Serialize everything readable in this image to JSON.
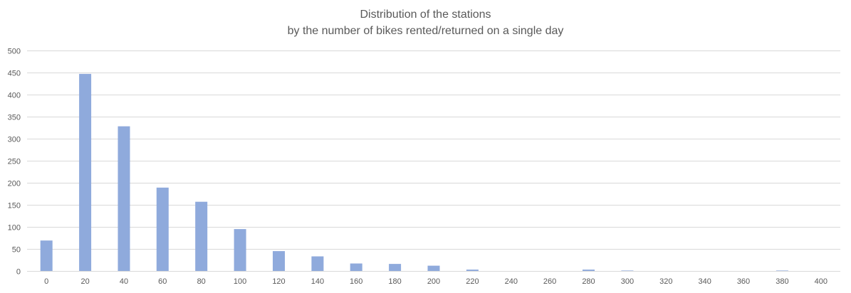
{
  "chart_data": {
    "type": "bar",
    "title": "Distribution of the stations",
    "subtitle": "by the number of bikes rented/returned on a single day",
    "xlabel": "",
    "ylabel": "",
    "categories": [
      "0",
      "20",
      "40",
      "60",
      "80",
      "100",
      "120",
      "140",
      "160",
      "180",
      "200",
      "220",
      "240",
      "260",
      "280",
      "300",
      "320",
      "340",
      "360",
      "380",
      "400"
    ],
    "values": [
      69,
      447,
      328,
      189,
      157,
      95,
      45,
      33,
      17,
      16,
      12,
      3,
      0,
      0,
      3,
      1,
      0,
      0,
      0,
      1,
      0
    ],
    "ylim": [
      0,
      500
    ],
    "yticks": [
      "0",
      "50",
      "100",
      "150",
      "200",
      "250",
      "300",
      "350",
      "400",
      "450",
      "500"
    ],
    "grid": true,
    "legend": "none",
    "bar_color": "#8faadc",
    "grid_color": "#d9d9d9"
  }
}
